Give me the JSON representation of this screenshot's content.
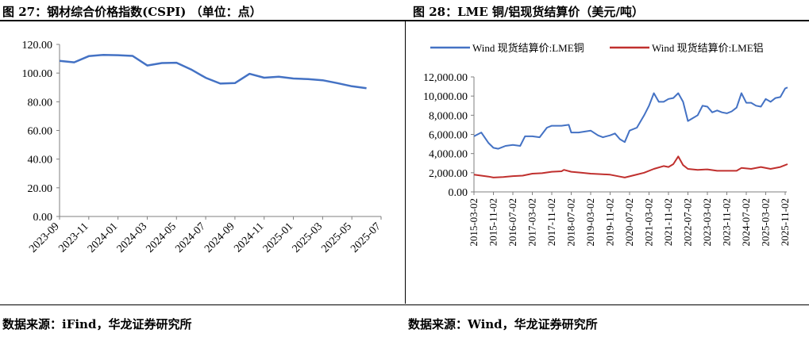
{
  "left": {
    "title": "图 27：钢材综合价格指数(CSPI) （单位：点）",
    "source": "数据来源：iFind，华龙证券研究所"
  },
  "right": {
    "title": "图 28：LME 铜/铝现货结算价（美元/吨）",
    "source": "数据来源：Wind，华龙证券研究所"
  },
  "colors": {
    "blue": "#4472C4",
    "red": "#C0302E",
    "axis": "#7f7f7f"
  },
  "chart_data": [
    {
      "type": "line",
      "title": "",
      "ylim": [
        0,
        120
      ],
      "y_ticks": [
        "0.00",
        "20.00",
        "40.00",
        "60.00",
        "80.00",
        "100.00",
        "120.00"
      ],
      "x_ticks": [
        "2023-09",
        "2023-11",
        "2024-01",
        "2024-03",
        "2024-05",
        "2024-07",
        "2024-09",
        "2024-11",
        "2025-01",
        "2025-03",
        "2025-05",
        "2025-07"
      ],
      "grid": false,
      "legend": "none",
      "x": [
        "2023-09",
        "2023-10",
        "2023-11",
        "2023-12",
        "2024-01",
        "2024-02",
        "2024-03",
        "2024-04",
        "2024-05",
        "2024-06",
        "2024-07",
        "2024-08",
        "2024-09",
        "2024-10",
        "2024-11",
        "2024-12",
        "2025-01",
        "2025-02",
        "2025-03",
        "2025-04",
        "2025-05",
        "2025-06"
      ],
      "series": [
        {
          "values": [
            108.5,
            107.5,
            111.8,
            112.7,
            112.5,
            112.0,
            105.3,
            107.0,
            107.2,
            102.5,
            96.7,
            92.7,
            93.0,
            99.5,
            96.8,
            97.5,
            96.2,
            95.8,
            95.0,
            93.0,
            90.8,
            89.5
          ]
        }
      ]
    },
    {
      "type": "line",
      "title": "",
      "ylim": [
        0,
        12000
      ],
      "y_ticks": [
        "0.00",
        "2,000.00",
        "4,000.00",
        "6,000.00",
        "8,000.00",
        "10,000.00",
        "12,000.00"
      ],
      "x_ticks": [
        "2015-03-02",
        "2015-11-02",
        "2016-07-02",
        "2017-03-02",
        "2017-11-02",
        "2018-07-02",
        "2019-03-02",
        "2019-11-02",
        "2020-07-02",
        "2021-03-02",
        "2021-11-02",
        "2022-07-02",
        "2023-03-02",
        "2023-11-02",
        "2024-07-02",
        "2025-03-02",
        "2025-11-02"
      ],
      "grid": false,
      "legend": "top",
      "series": [
        {
          "name": "Wind 现货结算价:LME铜",
          "x": [
            "2015-03-02",
            "2015-06-02",
            "2015-09-02",
            "2015-11-02",
            "2016-01-02",
            "2016-04-02",
            "2016-07-02",
            "2016-10-02",
            "2016-12-02",
            "2017-03-02",
            "2017-06-02",
            "2017-09-02",
            "2017-11-02",
            "2018-03-02",
            "2018-06-02",
            "2018-07-02",
            "2018-10-02",
            "2019-03-02",
            "2019-06-02",
            "2019-08-02",
            "2019-11-02",
            "2020-01-02",
            "2020-03-02",
            "2020-05-02",
            "2020-07-02",
            "2020-10-02",
            "2021-01-02",
            "2021-03-02",
            "2021-05-02",
            "2021-07-02",
            "2021-09-02",
            "2021-11-02",
            "2022-01-02",
            "2022-03-02",
            "2022-05-02",
            "2022-07-02",
            "2022-09-02",
            "2022-11-02",
            "2023-01-02",
            "2023-03-02",
            "2023-05-02",
            "2023-07-02",
            "2023-09-02",
            "2023-11-02",
            "2024-01-02",
            "2024-03-02",
            "2024-05-02",
            "2024-07-02",
            "2024-09-02",
            "2024-11-02",
            "2025-01-02",
            "2025-03-02",
            "2025-05-02",
            "2025-07-02",
            "2025-09-02",
            "2025-11-02",
            "2025-12-01"
          ],
          "values": [
            5800,
            6200,
            5100,
            4600,
            4500,
            4800,
            4900,
            4800,
            5800,
            5800,
            5700,
            6700,
            6900,
            6900,
            7000,
            6200,
            6200,
            6400,
            5900,
            5700,
            5900,
            6100,
            5500,
            5200,
            6400,
            6700,
            8000,
            9000,
            10300,
            9400,
            9400,
            9700,
            9800,
            10300,
            9400,
            7400,
            7700,
            8000,
            9000,
            8900,
            8300,
            8500,
            8300,
            8200,
            8400,
            8800,
            10300,
            9300,
            9300,
            9000,
            8900,
            9700,
            9400,
            9800,
            9900,
            10800,
            10900
          ]
        },
        {
          "name": "Wind 现货结算价:LME铝",
          "x": [
            "2015-03-02",
            "2015-06-02",
            "2015-09-02",
            "2015-11-02",
            "2016-03-02",
            "2016-07-02",
            "2016-11-02",
            "2017-03-02",
            "2017-07-02",
            "2017-11-02",
            "2018-03-02",
            "2018-04-02",
            "2018-07-02",
            "2018-11-02",
            "2019-03-02",
            "2019-07-02",
            "2019-11-02",
            "2020-03-02",
            "2020-05-02",
            "2020-09-02",
            "2021-01-02",
            "2021-05-02",
            "2021-09-02",
            "2021-11-02",
            "2022-01-02",
            "2022-03-02",
            "2022-05-02",
            "2022-07-02",
            "2022-11-02",
            "2023-03-02",
            "2023-07-02",
            "2023-11-02",
            "2024-03-02",
            "2024-05-02",
            "2024-09-02",
            "2025-01-02",
            "2025-05-02",
            "2025-09-02",
            "2025-11-02",
            "2025-12-01"
          ],
          "values": [
            1800,
            1700,
            1600,
            1500,
            1550,
            1650,
            1700,
            1900,
            1950,
            2100,
            2150,
            2300,
            2100,
            2000,
            1900,
            1850,
            1800,
            1600,
            1500,
            1750,
            2000,
            2400,
            2700,
            2600,
            2900,
            3700,
            2800,
            2400,
            2300,
            2350,
            2200,
            2200,
            2200,
            2500,
            2400,
            2600,
            2400,
            2600,
            2800,
            2900
          ]
        }
      ]
    }
  ]
}
